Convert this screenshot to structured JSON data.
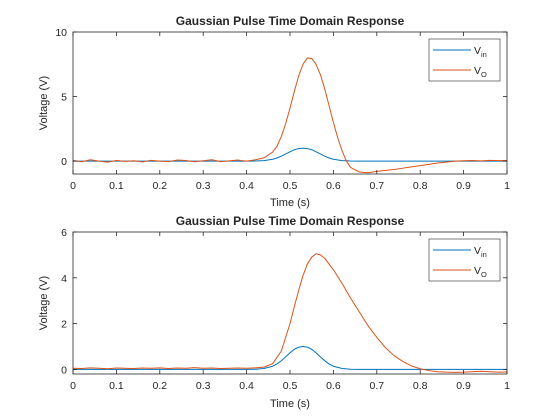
{
  "chart_data": [
    {
      "type": "line",
      "title": "Gaussian Pulse Time Domain Response",
      "xlabel": "Time (s)",
      "ylabel": "Voltage (V)",
      "xlim": [
        0,
        1
      ],
      "ylim": [
        -1,
        10
      ],
      "xticks": [
        0,
        0.1,
        0.2,
        0.3,
        0.4,
        0.5,
        0.6,
        0.7,
        0.8,
        0.9,
        1
      ],
      "xtick_labels": [
        "0",
        "0.1",
        "0.2",
        "0.3",
        "0.4",
        "0.5",
        "0.6",
        "0.7",
        "0.8",
        "0.9",
        "1"
      ],
      "yticks": [
        0,
        5,
        10
      ],
      "ytick_labels": [
        "0",
        "5",
        "10"
      ],
      "grid": false,
      "legend": "top-right",
      "series": [
        {
          "name": "V_in",
          "legend_main": "V",
          "legend_sub": "in",
          "color": "#0072BD",
          "x": [
            0,
            0.4,
            0.42,
            0.44,
            0.46,
            0.47,
            0.48,
            0.49,
            0.5,
            0.51,
            0.52,
            0.53,
            0.54,
            0.55,
            0.56,
            0.57,
            0.58,
            0.59,
            0.6,
            0.62,
            0.64,
            0.66,
            1
          ],
          "y": [
            0,
            0,
            0.01,
            0.04,
            0.14,
            0.24,
            0.38,
            0.55,
            0.72,
            0.88,
            0.97,
            1.0,
            0.97,
            0.88,
            0.72,
            0.55,
            0.38,
            0.24,
            0.14,
            0.04,
            0.01,
            0,
            0
          ]
        },
        {
          "name": "V_O",
          "legend_main": "V",
          "legend_sub": "O",
          "color": "#D95319",
          "x": [
            0,
            0.02,
            0.04,
            0.06,
            0.08,
            0.1,
            0.12,
            0.14,
            0.16,
            0.18,
            0.2,
            0.22,
            0.24,
            0.26,
            0.28,
            0.3,
            0.32,
            0.34,
            0.36,
            0.38,
            0.4,
            0.42,
            0.44,
            0.46,
            0.47,
            0.48,
            0.49,
            0.5,
            0.51,
            0.52,
            0.53,
            0.54,
            0.55,
            0.56,
            0.57,
            0.58,
            0.59,
            0.6,
            0.61,
            0.62,
            0.63,
            0.64,
            0.66,
            0.68,
            0.7,
            0.72,
            0.74,
            0.76,
            0.78,
            0.8,
            0.82,
            0.84,
            0.86,
            0.88,
            0.9,
            0.92,
            0.94,
            0.96,
            0.98,
            1.0
          ],
          "y": [
            0.05,
            -0.05,
            0.1,
            0.0,
            -0.08,
            0.05,
            -0.02,
            0.03,
            -0.06,
            0.06,
            0.0,
            -0.04,
            0.08,
            0.05,
            -0.05,
            0.03,
            0.1,
            -0.04,
            0.02,
            0.08,
            0.0,
            0.1,
            0.25,
            0.7,
            1.15,
            1.9,
            2.9,
            4.1,
            5.4,
            6.6,
            7.5,
            8.0,
            7.95,
            7.5,
            6.7,
            5.6,
            4.3,
            3.0,
            1.8,
            0.8,
            0.0,
            -0.5,
            -0.85,
            -0.9,
            -0.8,
            -0.72,
            -0.65,
            -0.55,
            -0.45,
            -0.35,
            -0.25,
            -0.15,
            -0.08,
            0.0,
            0.03,
            0.05,
            0.02,
            0.06,
            0.04,
            0.05
          ]
        }
      ]
    },
    {
      "type": "line",
      "title": "Gaussian Pulse Time Domain Response",
      "xlabel": "Time (s)",
      "ylabel": "Voltage (V)",
      "xlim": [
        0,
        1
      ],
      "ylim": [
        -0.2,
        6
      ],
      "xticks": [
        0,
        0.1,
        0.2,
        0.3,
        0.4,
        0.5,
        0.6,
        0.7,
        0.8,
        0.9,
        1
      ],
      "xtick_labels": [
        "0",
        "0.1",
        "0.2",
        "0.3",
        "0.4",
        "0.5",
        "0.6",
        "0.7",
        "0.8",
        "0.9",
        "1"
      ],
      "yticks": [
        0,
        2,
        4,
        6
      ],
      "ytick_labels": [
        "0",
        "2",
        "4",
        "6"
      ],
      "grid": false,
      "legend": "top-right",
      "series": [
        {
          "name": "V_in",
          "legend_main": "V",
          "legend_sub": "in",
          "color": "#0072BD",
          "x": [
            0,
            0.4,
            0.42,
            0.44,
            0.46,
            0.47,
            0.48,
            0.49,
            0.5,
            0.51,
            0.52,
            0.53,
            0.54,
            0.55,
            0.56,
            0.57,
            0.58,
            0.59,
            0.6,
            0.62,
            0.64,
            0.66,
            1
          ],
          "y": [
            0,
            0,
            0.01,
            0.04,
            0.14,
            0.24,
            0.38,
            0.55,
            0.72,
            0.88,
            0.97,
            1.0,
            0.97,
            0.88,
            0.72,
            0.55,
            0.38,
            0.24,
            0.14,
            0.04,
            0.01,
            0,
            0
          ]
        },
        {
          "name": "V_O",
          "legend_main": "V",
          "legend_sub": "O",
          "color": "#D95319",
          "x": [
            0,
            0.02,
            0.04,
            0.06,
            0.08,
            0.1,
            0.12,
            0.14,
            0.16,
            0.18,
            0.2,
            0.22,
            0.24,
            0.26,
            0.28,
            0.3,
            0.32,
            0.34,
            0.36,
            0.38,
            0.4,
            0.42,
            0.44,
            0.46,
            0.48,
            0.5,
            0.51,
            0.52,
            0.53,
            0.54,
            0.55,
            0.56,
            0.57,
            0.58,
            0.59,
            0.6,
            0.62,
            0.64,
            0.66,
            0.68,
            0.7,
            0.72,
            0.74,
            0.76,
            0.78,
            0.8,
            0.82,
            0.84,
            0.86,
            0.88,
            0.9,
            0.92,
            0.94,
            0.96,
            0.98,
            1.0
          ],
          "y": [
            0.05,
            0.04,
            0.07,
            0.05,
            0.03,
            0.06,
            0.05,
            0.04,
            0.06,
            0.05,
            0.07,
            0.04,
            0.06,
            0.05,
            0.08,
            0.05,
            0.06,
            0.04,
            0.05,
            0.06,
            0.05,
            0.07,
            0.1,
            0.25,
            0.8,
            2.0,
            2.75,
            3.45,
            4.1,
            4.6,
            4.9,
            5.05,
            5.0,
            4.85,
            4.6,
            4.35,
            3.75,
            3.1,
            2.5,
            1.9,
            1.4,
            0.95,
            0.6,
            0.35,
            0.15,
            0.03,
            -0.05,
            -0.1,
            -0.12,
            -0.13,
            -0.12,
            -0.1,
            -0.08,
            -0.1,
            -0.12,
            -0.11
          ]
        }
      ]
    }
  ]
}
